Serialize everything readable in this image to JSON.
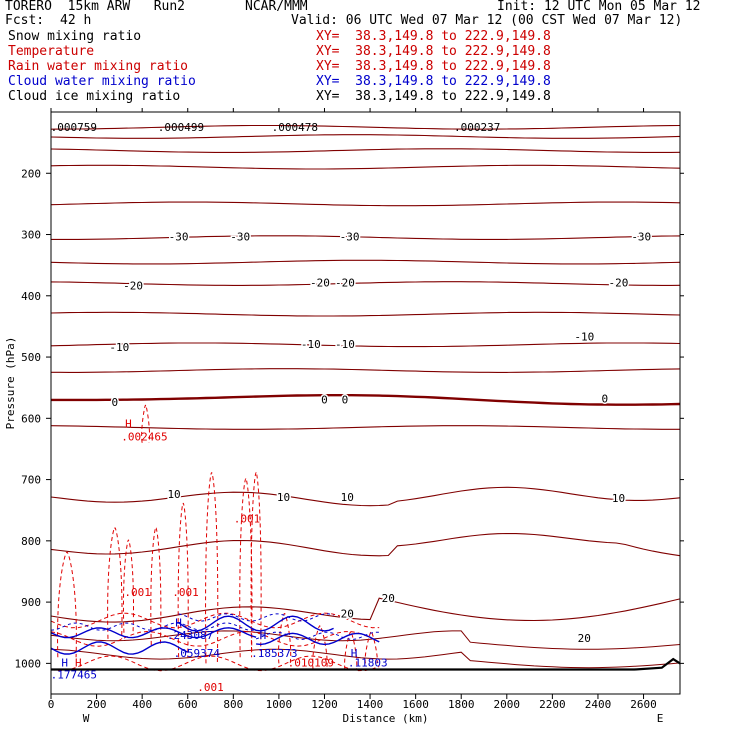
{
  "header": {
    "model": "TORERO  15km ARW   Run2",
    "org": "NCAR/MMM",
    "init": "Init: 12 UTC Mon 05 Mar 12",
    "fcst_label": "Fcst:",
    "fcst_value": "42 h",
    "valid": "Valid: 06 UTC Wed 07 Mar 12 (00 CST Wed 07 Mar 12)"
  },
  "fields": [
    {
      "name": "Snow mixing ratio",
      "xy": "XY=  38.3,149.8 to 222.9,149.8",
      "color": "#000000",
      "xy_color": "#cc0000"
    },
    {
      "name": "Temperature",
      "xy": "XY=  38.3,149.8 to 222.9,149.8",
      "color": "#cc0000",
      "xy_color": "#cc0000"
    },
    {
      "name": "Rain water mixing ratio",
      "xy": "XY=  38.3,149.8 to 222.9,149.8",
      "color": "#cc0000",
      "xy_color": "#cc0000"
    },
    {
      "name": "Cloud water mixing ratio",
      "xy": "XY=  38.3,149.8 to 222.9,149.8",
      "color": "#0000cc",
      "xy_color": "#0000cc"
    },
    {
      "name": "Cloud ice mixing ratio",
      "xy": "XY=  38.3,149.8 to 222.9,149.8",
      "color": "#000000",
      "xy_color": "#000000"
    }
  ],
  "colors": {
    "temperature": "#800000",
    "rain": "#e00000",
    "cloud_water": "#0000cc",
    "terrain": "#000000"
  },
  "chart_data": {
    "type": "contour",
    "xlabel": "Distance (km)",
    "ylabel": "Pressure (hPa)",
    "xlim": [
      0,
      2760
    ],
    "ylim": [
      1050,
      100
    ],
    "x_ticks": [
      0,
      200,
      400,
      600,
      800,
      1000,
      1200,
      1400,
      1600,
      1800,
      2000,
      2200,
      2400,
      2600
    ],
    "y_ticks": [
      200,
      300,
      400,
      500,
      600,
      700,
      800,
      900,
      1000
    ],
    "x_end_labels": {
      "left": "W",
      "right": "E"
    },
    "temperature_isotherms": {
      "interval_C": 5,
      "levels": [
        -30,
        -20,
        -10,
        0,
        10,
        20
      ],
      "labels": [
        {
          "text": "-30",
          "x": 560,
          "p": 305
        },
        {
          "text": "-30",
          "x": 830,
          "p": 305
        },
        {
          "text": "-30",
          "x": 1310,
          "p": 305
        },
        {
          "text": "-30",
          "x": 2590,
          "p": 305
        },
        {
          "text": "-20",
          "x": 360,
          "p": 385
        },
        {
          "text": "-20",
          "x": 1180,
          "p": 380
        },
        {
          "text": "-20",
          "x": 1290,
          "p": 380
        },
        {
          "text": "-20",
          "x": 2490,
          "p": 380
        },
        {
          "text": "-10",
          "x": 300,
          "p": 485
        },
        {
          "text": "-10",
          "x": 1140,
          "p": 480
        },
        {
          "text": "-10",
          "x": 1290,
          "p": 480
        },
        {
          "text": "-10",
          "x": 2340,
          "p": 468
        },
        {
          "text": "0",
          "x": 280,
          "p": 575
        },
        {
          "text": "0",
          "x": 1200,
          "p": 571
        },
        {
          "text": "0",
          "x": 1290,
          "p": 571
        },
        {
          "text": "0",
          "x": 2430,
          "p": 569
        },
        {
          "text": "10",
          "x": 540,
          "p": 725
        },
        {
          "text": "10",
          "x": 1020,
          "p": 730
        },
        {
          "text": "10",
          "x": 1300,
          "p": 730
        },
        {
          "text": "10",
          "x": 2490,
          "p": 732
        },
        {
          "text": "20",
          "x": 1300,
          "p": 920
        },
        {
          "text": "20",
          "x": 1480,
          "p": 895
        },
        {
          "text": "20",
          "x": 2340,
          "p": 960
        }
      ]
    },
    "rain_water_mixing_ratio": {
      "labels": [
        {
          "text": "H",
          "x": 340,
          "p": 610
        },
        {
          "text": ".002465",
          "x": 410,
          "p": 631
        },
        {
          "text": ".001",
          "x": 860,
          "p": 765
        },
        {
          "text": ".001",
          "x": 380,
          "p": 885
        },
        {
          "text": ".001",
          "x": 590,
          "p": 885
        },
        {
          "text": ".001",
          "x": 700,
          "p": 1040
        },
        {
          "text": ".010109",
          "x": 1140,
          "p": 1000
        },
        {
          "text": "H",
          "x": 120,
          "p": 1000
        }
      ]
    },
    "cloud_water_mixing_ratio": {
      "labels": [
        {
          "text": "H",
          "x": 560,
          "p": 935
        },
        {
          "text": ".243087",
          "x": 610,
          "p": 955
        },
        {
          "text": ".059374",
          "x": 640,
          "p": 985
        },
        {
          "text": "H",
          "x": 930,
          "p": 955
        },
        {
          "text": ".185373",
          "x": 980,
          "p": 985
        },
        {
          "text": "H",
          "x": 1330,
          "p": 985
        },
        {
          "text": ".11803",
          "x": 1390,
          "p": 1000
        },
        {
          "text": "H",
          "x": 60,
          "p": 1000
        },
        {
          "text": ".177465",
          "x": 100,
          "p": 1020
        }
      ]
    },
    "cloud_ice_mixing_ratio": {
      "labels": [
        {
          "text": ".000759",
          "x": 100,
          "p": 126
        },
        {
          "text": ".000499",
          "x": 570,
          "p": 126
        },
        {
          "text": ".000478",
          "x": 1070,
          "p": 126
        },
        {
          "text": ".000237",
          "x": 1870,
          "p": 126
        }
      ]
    },
    "terrain_surface_hPa": [
      [
        0,
        1010
      ],
      [
        2560,
        1010
      ],
      [
        2680,
        1007
      ],
      [
        2730,
        993
      ],
      [
        2760,
        1000
      ]
    ]
  }
}
